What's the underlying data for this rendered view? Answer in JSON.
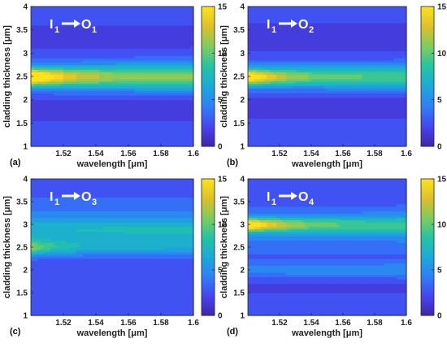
{
  "colormap": [
    "#3e26a8",
    "#4743f0",
    "#2f7ef9",
    "#1ba9da",
    "#23c4a6",
    "#7ccd5f",
    "#dcc02a",
    "#fbe31a"
  ],
  "chart_data": [
    {
      "type": "heatmap",
      "panel_label": "(a)",
      "annotation": {
        "from": "I",
        "from_sub": "1",
        "to": "O",
        "to_sub": "1"
      },
      "xlabel": "wavelength [μm]",
      "ylabel": "cladding thickness [μm]",
      "xlim": [
        1.5,
        1.6
      ],
      "ylim": [
        1,
        4
      ],
      "xticks": [
        "1.52",
        "1.54",
        "1.56",
        "1.58",
        "1.6"
      ],
      "yticks": [
        "1",
        "1.5",
        "2",
        "2.5",
        "3",
        "3.5",
        "4"
      ],
      "colorbar": {
        "range": [
          0,
          15
        ],
        "ticks": [
          "0",
          "5",
          "10",
          "15"
        ]
      },
      "peak": {
        "x": 1.5,
        "y": 2.5,
        "value": 15
      }
    },
    {
      "type": "heatmap",
      "panel_label": "(b)",
      "annotation": {
        "from": "I",
        "from_sub": "1",
        "to": "O",
        "to_sub": "2"
      },
      "xlabel": "wavelength [μm]",
      "ylabel": "cladding thickness [μm]",
      "xlim": [
        1.5,
        1.6
      ],
      "ylim": [
        1,
        4
      ],
      "xticks": [
        "1.52",
        "1.54",
        "1.56",
        "1.58",
        "1.6"
      ],
      "yticks": [
        "1",
        "1.5",
        "2",
        "2.5",
        "3",
        "3.5",
        "4"
      ],
      "colorbar": {
        "range": [
          0,
          15
        ],
        "ticks": [
          "0",
          "5",
          "10",
          "15"
        ]
      },
      "peak": {
        "x": 1.5,
        "y": 2.5,
        "value": 14
      }
    },
    {
      "type": "heatmap",
      "panel_label": "(c)",
      "annotation": {
        "from": "I",
        "from_sub": "1",
        "to": "O",
        "to_sub": "3"
      },
      "xlabel": "wavelength [μm]",
      "ylabel": "cladding thickness [μm]",
      "xlim": [
        1.5,
        1.6
      ],
      "ylim": [
        1,
        4
      ],
      "xticks": [
        "1.52",
        "1.54",
        "1.56",
        "1.58",
        "1.6"
      ],
      "yticks": [
        "1",
        "1.5",
        "2",
        "2.5",
        "3",
        "3.5",
        "4"
      ],
      "colorbar": {
        "range": [
          0,
          15
        ],
        "ticks": [
          "0",
          "5",
          "10",
          "15"
        ]
      },
      "peak": {
        "x": 1.5,
        "y": 2.5,
        "value": 11
      }
    },
    {
      "type": "heatmap",
      "panel_label": "(d)",
      "annotation": {
        "from": "I",
        "from_sub": "1",
        "to": "O",
        "to_sub": "4"
      },
      "xlabel": "wavelength [μm]",
      "ylabel": "cladding thickness [μm]",
      "xlim": [
        1.5,
        1.6
      ],
      "ylim": [
        1,
        4
      ],
      "xticks": [
        "1.52",
        "1.54",
        "1.56",
        "1.58",
        "1.6"
      ],
      "yticks": [
        "1",
        "1.5",
        "2",
        "2.5",
        "3",
        "3.5",
        "4"
      ],
      "colorbar": {
        "range": [
          0,
          15
        ],
        "ticks": [
          "0",
          "5",
          "10",
          "15"
        ]
      },
      "peak": {
        "x": 1.5,
        "y": 3,
        "value": 15
      }
    }
  ]
}
